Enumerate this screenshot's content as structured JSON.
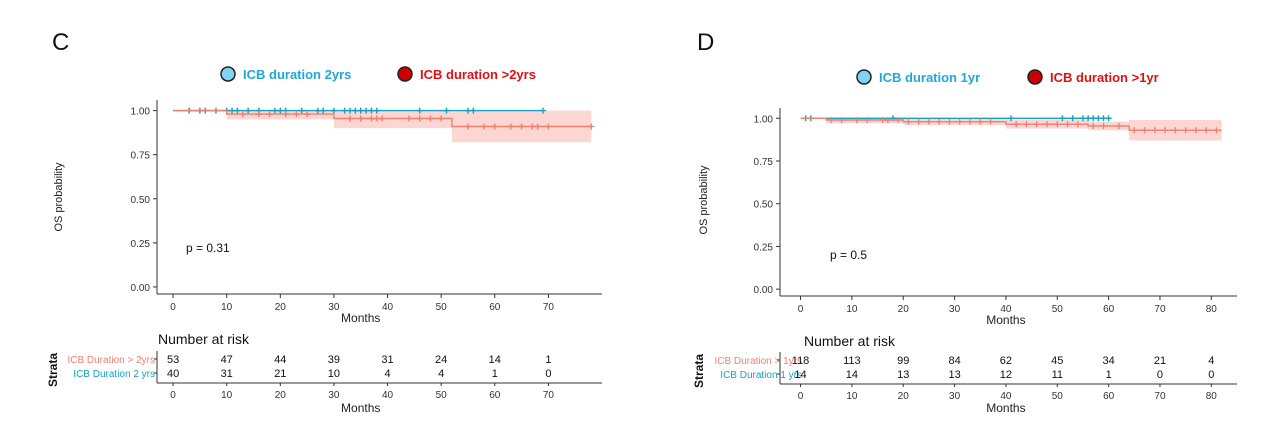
{
  "chart_data": [
    {
      "type": "line",
      "panel_label": "C",
      "legend": [
        {
          "label": "ICB duration 2yrs",
          "color": "#80d4f2",
          "text_color": "#22a8d8"
        },
        {
          "label": "ICB duration >2yrs",
          "color": "#cc0000",
          "text_color": "#e01010"
        }
      ],
      "ylabel": "OS probability",
      "xlabel": "Months",
      "y_ticks": [
        "0.00",
        "0.25",
        "0.50",
        "0.75",
        "1.00"
      ],
      "y_tick_values": [
        0,
        0.25,
        0.5,
        0.75,
        1.0
      ],
      "x_ticks": [
        0,
        10,
        20,
        30,
        40,
        50,
        60,
        70
      ],
      "xlim": [
        -3,
        80
      ],
      "ylim": [
        -0.04,
        1.06
      ],
      "pvalue": "p = 0.31",
      "series": [
        {
          "color": "#16a3c2",
          "steps": [
            [
              0,
              1.0
            ],
            [
              69,
              1.0
            ]
          ],
          "censor_x": [
            3,
            5,
            6,
            8,
            10,
            11,
            12,
            14,
            16,
            19,
            20,
            21,
            24,
            27,
            28,
            30,
            32,
            33,
            34,
            35,
            36,
            37,
            38,
            46,
            51,
            55,
            56,
            69
          ],
          "ci": null
        },
        {
          "color": "#f08070",
          "steps": [
            [
              0,
              1.0
            ],
            [
              10,
              1.0
            ],
            [
              10,
              0.98
            ],
            [
              30,
              0.98
            ],
            [
              30,
              0.955
            ],
            [
              52,
              0.955
            ],
            [
              52,
              0.91
            ],
            [
              78,
              0.91
            ]
          ],
          "censor_x": [
            13,
            16,
            18,
            21,
            23,
            25,
            33,
            35,
            37,
            38,
            39,
            44,
            46,
            48,
            50,
            55,
            58,
            60,
            63,
            65,
            67,
            68,
            70,
            78
          ],
          "ci": [
            [
              10,
              30,
              0.95,
              1.0
            ],
            [
              30,
              52,
              0.9,
              1.0
            ],
            [
              52,
              78,
              0.82,
              1.0
            ]
          ]
        }
      ],
      "risk_table": {
        "title": "Number at risk",
        "strata_label": "Strata",
        "xlabel": "Months",
        "x_ticks": [
          0,
          10,
          20,
          30,
          40,
          50,
          60,
          70
        ],
        "rows": [
          {
            "label": "ICB Duration > 2yrs",
            "color": "#f08070",
            "values": [
              53,
              47,
              44,
              39,
              31,
              24,
              14,
              1
            ]
          },
          {
            "label": "ICB Duration 2 yrs",
            "color": "#16a3c2",
            "values": [
              40,
              31,
              21,
              10,
              4,
              4,
              1,
              0
            ]
          }
        ]
      }
    },
    {
      "type": "line",
      "panel_label": "D",
      "legend": [
        {
          "label": "ICB duration 1yr",
          "color": "#80d4f2",
          "text_color": "#22a8d8"
        },
        {
          "label": "ICB duration >1yr",
          "color": "#cc0000",
          "text_color": "#e01010"
        }
      ],
      "ylabel": "OS probability",
      "xlabel": "Months",
      "y_ticks": [
        "0.00",
        "0.25",
        "0.50",
        "0.75",
        "1.00"
      ],
      "y_tick_values": [
        0,
        0.25,
        0.5,
        0.75,
        1.0
      ],
      "x_ticks": [
        0,
        10,
        20,
        30,
        40,
        50,
        60,
        70,
        80
      ],
      "xlim": [
        -4,
        85
      ],
      "ylim": [
        -0.04,
        1.06
      ],
      "pvalue": "p = 0.5",
      "series": [
        {
          "color": "#16a3c2",
          "steps": [
            [
              0,
              1.0
            ],
            [
              60,
              1.0
            ]
          ],
          "censor_x": [
            1,
            2,
            18,
            41,
            51,
            53,
            55,
            56,
            57,
            58,
            59,
            60
          ],
          "ci": null
        },
        {
          "color": "#f08070",
          "steps": [
            [
              0,
              1.0
            ],
            [
              5,
              1.0
            ],
            [
              5,
              0.99
            ],
            [
              20,
              0.99
            ],
            [
              20,
              0.98
            ],
            [
              40,
              0.98
            ],
            [
              40,
              0.965
            ],
            [
              56,
              0.965
            ],
            [
              56,
              0.955
            ],
            [
              64,
              0.955
            ],
            [
              64,
              0.93
            ],
            [
              82,
              0.93
            ]
          ],
          "censor_x": [
            6,
            8,
            11,
            13,
            16,
            17,
            19,
            21,
            23,
            25,
            27,
            29,
            31,
            33,
            35,
            37,
            42,
            44,
            46,
            48,
            50,
            52,
            54,
            57,
            59,
            62,
            65,
            67,
            69,
            71,
            73,
            75,
            77,
            79,
            81
          ],
          "ci": [
            [
              5,
              20,
              0.97,
              1.0
            ],
            [
              20,
              40,
              0.96,
              1.0
            ],
            [
              40,
              56,
              0.94,
              0.99
            ],
            [
              56,
              64,
              0.93,
              0.98
            ],
            [
              64,
              82,
              0.87,
              0.99
            ]
          ]
        }
      ],
      "risk_table": {
        "title": "Number at risk",
        "strata_label": "Strata",
        "xlabel": "Months",
        "x_ticks": [
          0,
          10,
          20,
          30,
          40,
          50,
          60,
          70,
          80
        ],
        "rows": [
          {
            "label": "ICB Duration > 1yrs",
            "color": "#f08070",
            "values": [
              118,
              113,
              99,
              84,
              62,
              45,
              34,
              21,
              4
            ]
          },
          {
            "label": "ICB Duration 1 yrs",
            "color": "#16a3c2",
            "values": [
              14,
              14,
              13,
              13,
              12,
              11,
              1,
              0,
              0
            ]
          }
        ]
      }
    }
  ]
}
